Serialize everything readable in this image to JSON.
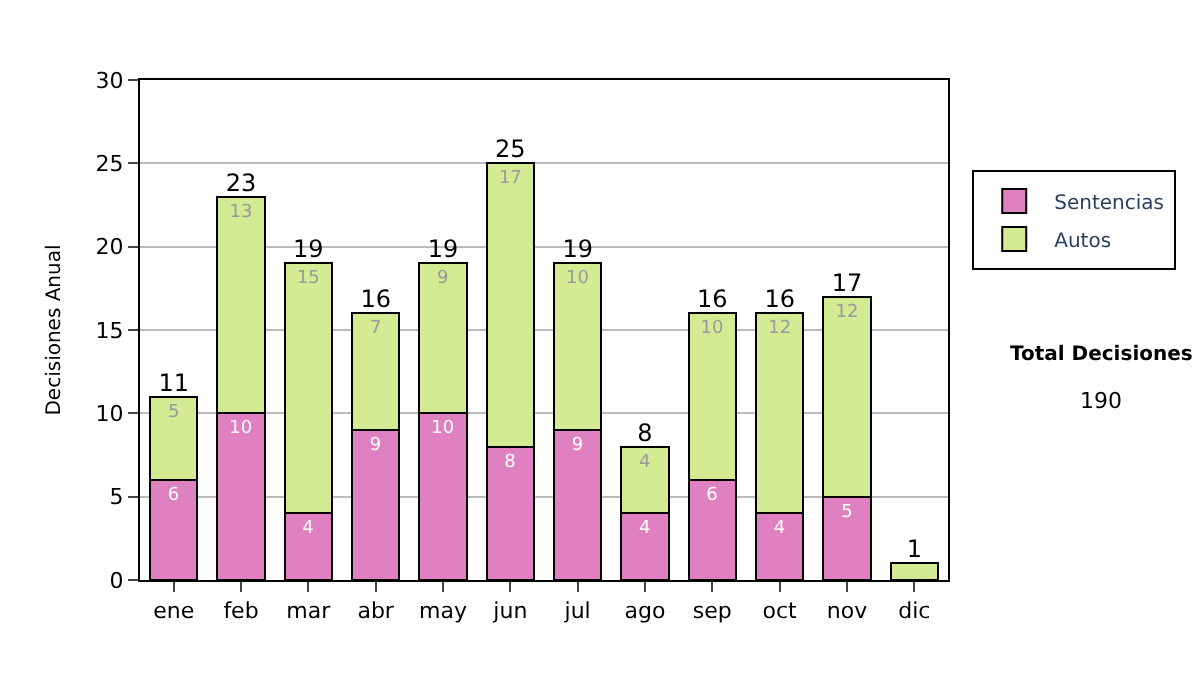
{
  "chart_data": {
    "type": "bar",
    "stacked": true,
    "ylabel": "Decisiones Anual",
    "categories": [
      "ene",
      "feb",
      "mar",
      "abr",
      "may",
      "jun",
      "jul",
      "ago",
      "sep",
      "oct",
      "nov",
      "dic"
    ],
    "series": [
      {
        "name": "Sentencias",
        "color": "#df80c0",
        "values": [
          6,
          10,
          4,
          9,
          10,
          8,
          9,
          4,
          6,
          4,
          5,
          0
        ],
        "value_labels": [
          "6",
          "10",
          "4",
          "9",
          "10",
          "8",
          "9",
          "4",
          "6",
          "4",
          "5",
          null
        ]
      },
      {
        "name": "Autos",
        "color": "#d4eb94",
        "values": [
          5,
          13,
          15,
          7,
          9,
          17,
          10,
          4,
          10,
          12,
          12,
          1
        ],
        "value_labels": [
          "5",
          "13",
          "15",
          "7",
          "9",
          "17",
          "10",
          "4",
          "10",
          "12",
          "12",
          null
        ]
      }
    ],
    "totals": [
      "11",
      "23",
      "19",
      "16",
      "19",
      "25",
      "19",
      "8",
      "16",
      "16",
      "17",
      "1"
    ],
    "ylim": [
      0,
      30
    ],
    "yticks": [
      0,
      5,
      10,
      15,
      20,
      25,
      30
    ],
    "grid": "y",
    "legend": "right",
    "annotations": [
      "Total Decisiones",
      "190"
    ]
  }
}
